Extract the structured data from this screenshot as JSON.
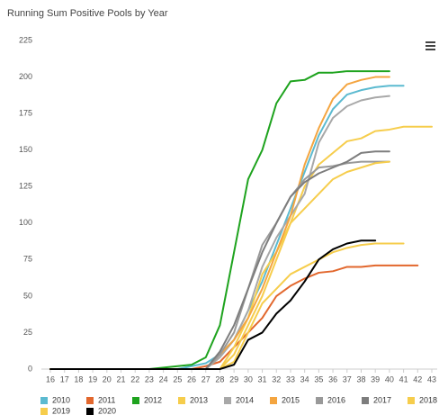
{
  "chart_data": {
    "type": "line",
    "title": "Running Sum Positive Pools by Year",
    "x": [
      16,
      17,
      18,
      19,
      20,
      21,
      22,
      23,
      24,
      25,
      26,
      27,
      28,
      29,
      30,
      31,
      32,
      33,
      34,
      35,
      36,
      37,
      38,
      39,
      40,
      41,
      42,
      43
    ],
    "xlim": [
      16,
      43
    ],
    "ylim": [
      0,
      225
    ],
    "yticks": [
      0,
      25,
      50,
      75,
      100,
      125,
      150,
      175,
      200,
      225
    ],
    "grid": false,
    "legend": "bottom",
    "series": [
      {
        "name": "2010",
        "color": "#5bbad0",
        "values": [
          0,
          0,
          0,
          0,
          0,
          0,
          0,
          0,
          0,
          0,
          2,
          4,
          10,
          20,
          40,
          60,
          85,
          110,
          135,
          160,
          178,
          188,
          191,
          193,
          194,
          194,
          null,
          null
        ]
      },
      {
        "name": "2011",
        "color": "#e2672d",
        "values": [
          0,
          0,
          0,
          0,
          0,
          0,
          0,
          0,
          0,
          0,
          0,
          2,
          5,
          15,
          25,
          35,
          50,
          57,
          62,
          66,
          67,
          70,
          70,
          71,
          71,
          71,
          71,
          null
        ]
      },
      {
        "name": "2012",
        "color": "#1ea31e",
        "values": [
          0,
          0,
          0,
          0,
          0,
          0,
          0,
          0,
          1,
          2,
          3,
          8,
          30,
          80,
          130,
          150,
          182,
          197,
          198,
          203,
          203,
          204,
          204,
          204,
          204,
          null,
          null,
          null
        ]
      },
      {
        "name": "2013",
        "color": "#f6cd4c",
        "values": [
          0,
          0,
          0,
          0,
          0,
          0,
          0,
          0,
          0,
          0,
          0,
          0,
          0,
          15,
          35,
          65,
          80,
          100,
          125,
          140,
          148,
          156,
          158,
          163,
          164,
          166,
          166,
          166
        ]
      },
      {
        "name": "2014",
        "color": "#a8a8a8",
        "values": [
          0,
          0,
          0,
          0,
          0,
          0,
          0,
          0,
          0,
          0,
          0,
          0,
          8,
          20,
          40,
          70,
          90,
          105,
          120,
          155,
          172,
          180,
          184,
          186,
          187,
          null,
          null,
          null
        ]
      },
      {
        "name": "2015",
        "color": "#f4a540",
        "values": [
          0,
          0,
          0,
          0,
          0,
          0,
          0,
          0,
          0,
          0,
          0,
          0,
          10,
          20,
          35,
          55,
          80,
          105,
          140,
          165,
          185,
          195,
          198,
          200,
          200,
          null,
          null,
          null
        ]
      },
      {
        "name": "2016",
        "color": "#999999",
        "values": [
          0,
          0,
          0,
          0,
          0,
          0,
          0,
          0,
          0,
          0,
          0,
          0,
          10,
          25,
          55,
          85,
          100,
          118,
          130,
          138,
          139,
          141,
          142,
          142,
          142,
          null,
          null,
          null
        ]
      },
      {
        "name": "2017",
        "color": "#7d7d7d",
        "values": [
          0,
          0,
          0,
          0,
          0,
          0,
          0,
          0,
          0,
          0,
          0,
          0,
          12,
          30,
          55,
          80,
          100,
          118,
          128,
          134,
          138,
          142,
          148,
          149,
          149,
          null,
          null,
          null
        ]
      },
      {
        "name": "2018",
        "color": "#f6cd4c",
        "values": [
          0,
          0,
          0,
          0,
          0,
          0,
          0,
          0,
          0,
          0,
          0,
          0,
          0,
          10,
          30,
          50,
          75,
          100,
          110,
          120,
          130,
          135,
          138,
          141,
          142,
          null,
          null,
          null
        ]
      },
      {
        "name": "2019",
        "color": "#f6cd4c",
        "values": [
          0,
          0,
          0,
          0,
          0,
          0,
          0,
          0,
          0,
          0,
          0,
          0,
          0,
          5,
          25,
          45,
          55,
          65,
          70,
          75,
          80,
          83,
          85,
          86,
          86,
          86,
          null,
          null
        ]
      },
      {
        "name": "2020",
        "color": "#000000",
        "values": [
          0,
          0,
          0,
          0,
          0,
          0,
          0,
          0,
          0,
          0,
          0,
          0,
          0,
          3,
          20,
          25,
          38,
          47,
          60,
          75,
          82,
          86,
          88,
          88,
          null,
          null,
          null,
          null
        ]
      }
    ]
  }
}
